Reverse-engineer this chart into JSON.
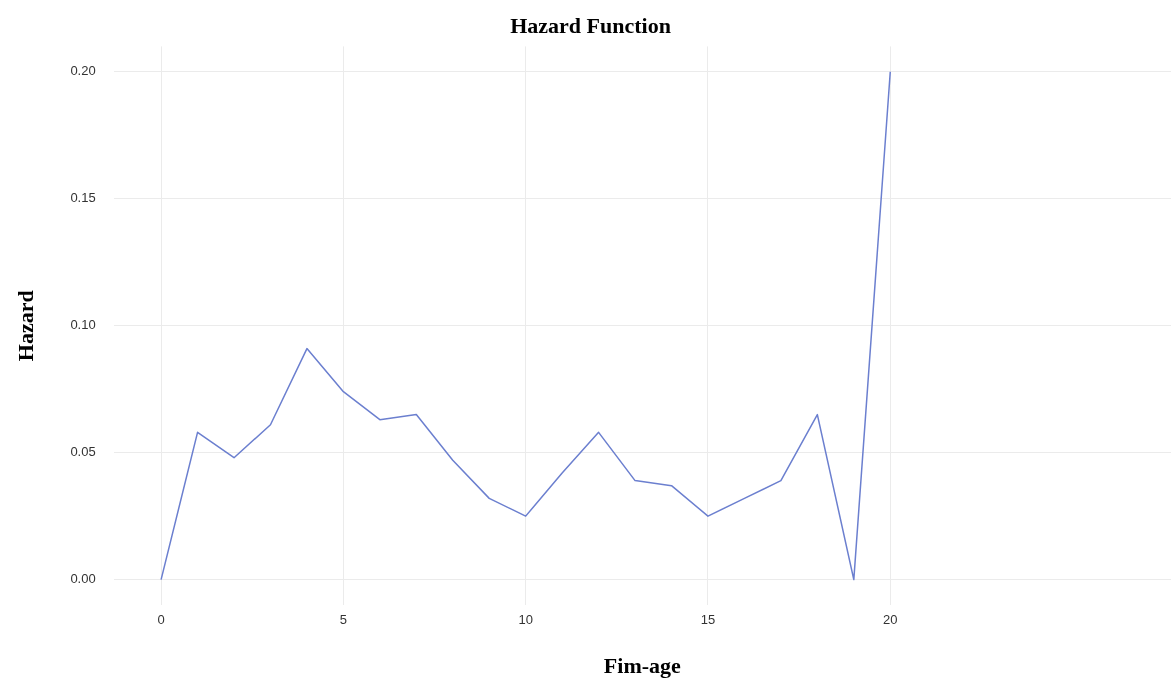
{
  "chart_data": {
    "type": "line",
    "title": "Hazard Function",
    "xlabel": "Fim-age",
    "ylabel": "Hazard",
    "x": [
      0,
      1,
      2,
      3,
      4,
      5,
      6,
      7,
      8,
      9,
      10,
      11,
      12,
      13,
      14,
      15,
      16,
      17,
      18,
      19,
      20
    ],
    "series": [
      {
        "color": "#6b7fcf",
        "values": [
          0,
          0.058,
          0.048,
          0.061,
          0.091,
          0.074,
          0.063,
          0.065,
          0.047,
          0.032,
          0.025,
          0.042,
          0.058,
          0.039,
          0.037,
          0.025,
          0.032,
          0.039,
          0.065,
          0,
          0.2
        ]
      }
    ],
    "xlim": [
      -1.3,
      27.7
    ],
    "xticks": [
      0,
      5,
      10,
      15,
      20
    ],
    "ylim": [
      -0.01,
      0.21
    ],
    "yticks": [
      {
        "value": 0,
        "label": "0.00"
      },
      {
        "value": 0.05,
        "label": "0.05"
      },
      {
        "value": 0.1,
        "label": "0.10"
      },
      {
        "value": 0.15,
        "label": "0.15"
      },
      {
        "value": 0.2,
        "label": "0.20"
      }
    ],
    "grid": true,
    "legend": false,
    "marker": "none",
    "line_style": "solid"
  }
}
